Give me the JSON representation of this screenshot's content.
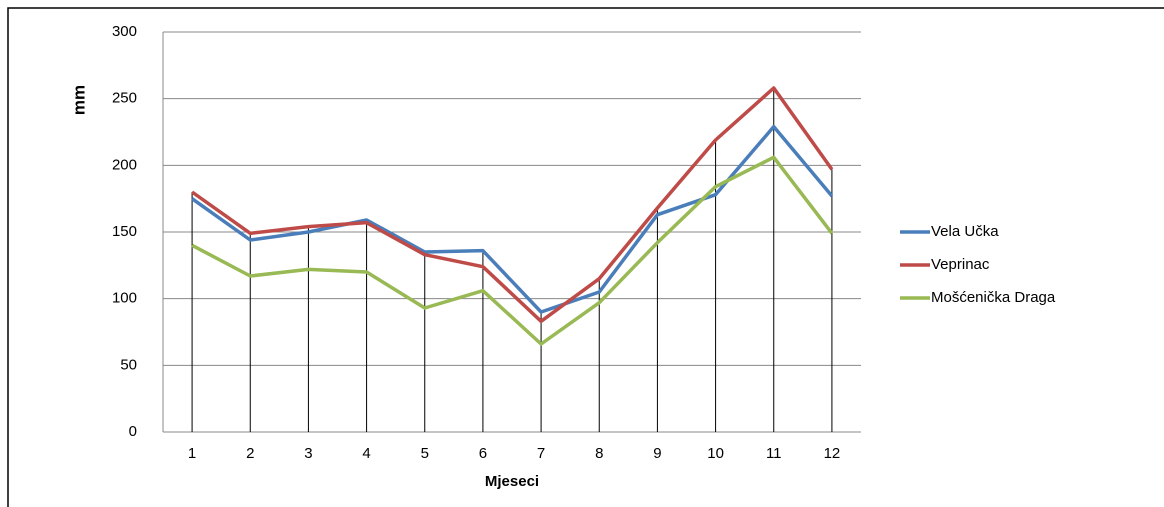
{
  "chart_data": {
    "type": "line",
    "x_label": "Mjeseci",
    "y_label": "mm",
    "categories": [
      "1",
      "2",
      "3",
      "4",
      "5",
      "6",
      "7",
      "8",
      "9",
      "10",
      "11",
      "12"
    ],
    "series": [
      {
        "name": "Vela Učka",
        "color": "#4a7ebb",
        "values": [
          175,
          144,
          150,
          159,
          135,
          136,
          90,
          105,
          163,
          178,
          229,
          177
        ]
      },
      {
        "name": "Veprinac",
        "color": "#be4b48",
        "values": [
          180,
          149,
          154,
          157,
          133,
          124,
          83,
          115,
          168,
          219,
          258,
          197
        ]
      },
      {
        "name": "Mošćenička Draga",
        "color": "#98b954",
        "values": [
          140,
          117,
          122,
          120,
          93,
          106,
          66,
          97,
          142,
          184,
          206,
          149
        ]
      }
    ],
    "ylim": [
      0,
      300
    ],
    "yticks": [
      0,
      50,
      100,
      150,
      200,
      250,
      300
    ],
    "grid": true,
    "drop_lines": true,
    "legend": "right"
  }
}
